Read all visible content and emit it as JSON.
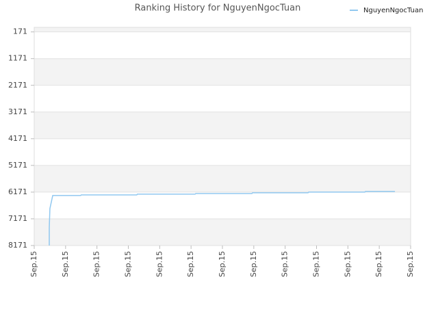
{
  "chart_data": {
    "type": "line",
    "title": "Ranking History for NguyenNgocTuan",
    "series": [
      {
        "name": "NguyenNgocTuan",
        "color": "#90c8f0",
        "x": [
          0.48,
          0.48,
          0.5,
          0.59,
          1.48,
          1.5,
          3.27,
          3.29,
          5.13,
          5.15,
          6.94,
          6.96,
          8.73,
          8.75,
          10.54,
          10.56,
          11.5
        ],
        "values": [
          8171,
          7504,
          6786,
          6299,
          6299,
          6274,
          6274,
          6248,
          6248,
          6223,
          6223,
          6197,
          6197,
          6171,
          6171,
          6146,
          6146
        ]
      }
    ],
    "xlim": [
      0,
      12
    ],
    "xticks": [
      {
        "value": 0,
        "label": "Sep.15"
      },
      {
        "value": 1,
        "label": "Sep.15"
      },
      {
        "value": 2,
        "label": "Sep.15"
      },
      {
        "value": 3,
        "label": "Sep.15"
      },
      {
        "value": 4,
        "label": "Sep.15"
      },
      {
        "value": 5,
        "label": "Sep.15"
      },
      {
        "value": 6,
        "label": "Sep.15"
      },
      {
        "value": 7,
        "label": "Sep.15"
      },
      {
        "value": 8,
        "label": "Sep.15"
      },
      {
        "value": 9,
        "label": "Sep.15"
      },
      {
        "value": 10,
        "label": "Sep.15"
      },
      {
        "value": 11,
        "label": "Sep.15"
      },
      {
        "value": 12,
        "label": "Sep.15"
      }
    ],
    "ylim": [
      0,
      8171
    ],
    "y_reversed": true,
    "yticks": [
      171,
      1171,
      2171,
      3171,
      4171,
      5171,
      6171,
      7171,
      8171
    ],
    "grid": true,
    "legend": "top-right"
  }
}
